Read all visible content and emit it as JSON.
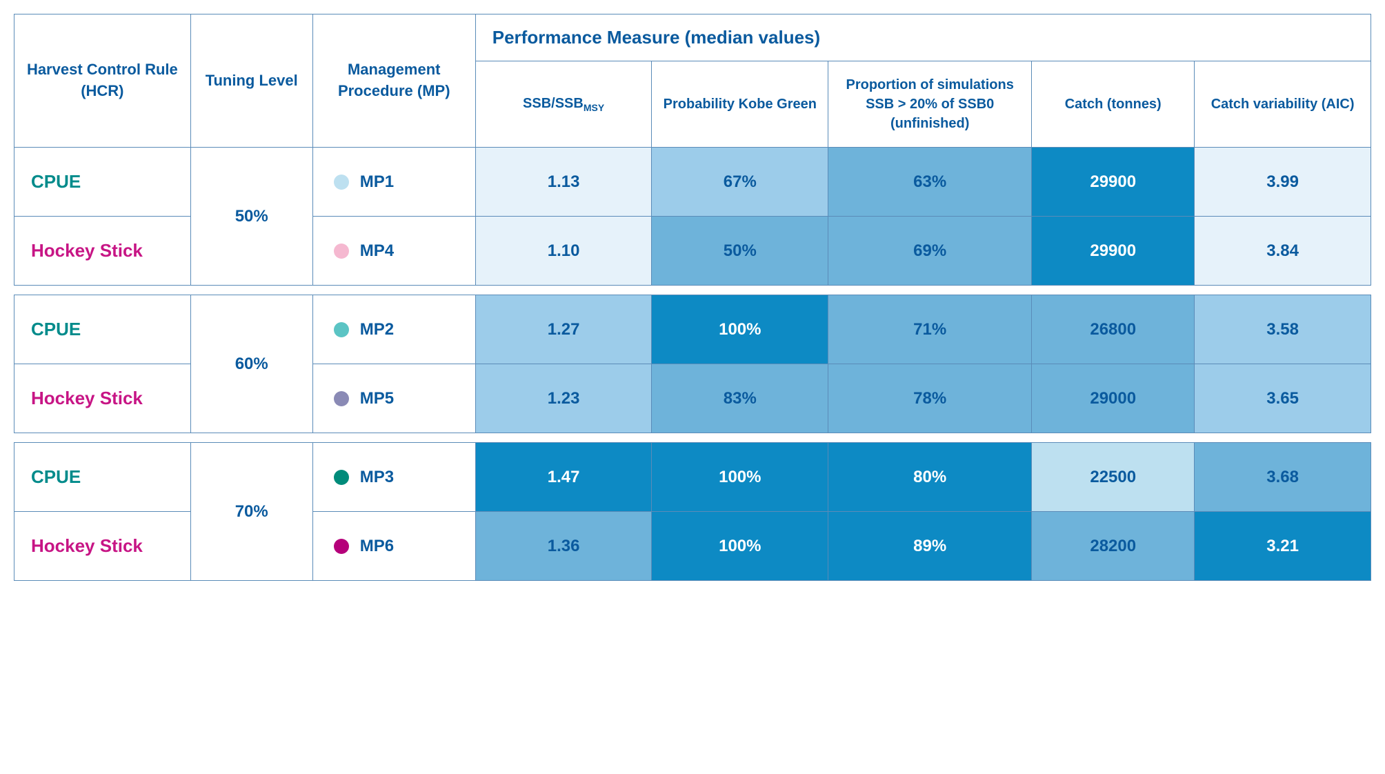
{
  "table": {
    "headers": {
      "hcr": "Harvest Control Rule (HCR)",
      "tuning": "Tuning Level",
      "mp": "Management Procedure (MP)",
      "perf_measure": "Performance Measure (median values)",
      "ssb": "SSB/SSB",
      "ssb_sub": "MSY",
      "prob_kobe": "Probability Kobe Green",
      "prop_sim": "Proportion of simulations SSB > 20% of SSB0 (unfinished)",
      "catch": "Catch (tonnes)",
      "catch_var": "Catch variability (AIC)"
    },
    "hcr_labels": {
      "cpue": "CPUE",
      "hockey": "Hockey Stick"
    },
    "groups": [
      {
        "tuning": "50%",
        "rows": [
          {
            "hcr": "cpue",
            "mp": "MP1",
            "dot_color": "#bde0f0",
            "cells": [
              {
                "v": "1.13",
                "bg": "#e6f2fa",
                "txt": "blue"
              },
              {
                "v": "67%",
                "bg": "#9cccea",
                "txt": "blue"
              },
              {
                "v": "63%",
                "bg": "#6eb3da",
                "txt": "blue"
              },
              {
                "v": "29900",
                "bg": "#0d8ac4",
                "txt": "white"
              },
              {
                "v": "3.99",
                "bg": "#e6f2fa",
                "txt": "blue"
              }
            ]
          },
          {
            "hcr": "hockey",
            "mp": "MP4",
            "dot_color": "#f5b8d0",
            "cells": [
              {
                "v": "1.10",
                "bg": "#e6f2fa",
                "txt": "blue"
              },
              {
                "v": "50%",
                "bg": "#6eb3da",
                "txt": "blue"
              },
              {
                "v": "69%",
                "bg": "#6eb3da",
                "txt": "blue"
              },
              {
                "v": "29900",
                "bg": "#0d8ac4",
                "txt": "white"
              },
              {
                "v": "3.84",
                "bg": "#e6f2fa",
                "txt": "blue"
              }
            ]
          }
        ]
      },
      {
        "tuning": "60%",
        "rows": [
          {
            "hcr": "cpue",
            "mp": "MP2",
            "dot_color": "#5bc4c4",
            "cells": [
              {
                "v": "1.27",
                "bg": "#9cccea",
                "txt": "blue"
              },
              {
                "v": "100%",
                "bg": "#0d8ac4",
                "txt": "white"
              },
              {
                "v": "71%",
                "bg": "#6eb3da",
                "txt": "blue"
              },
              {
                "v": "26800",
                "bg": "#6eb3da",
                "txt": "blue"
              },
              {
                "v": "3.58",
                "bg": "#9cccea",
                "txt": "blue"
              }
            ]
          },
          {
            "hcr": "hockey",
            "mp": "MP5",
            "dot_color": "#8a8ab5",
            "cells": [
              {
                "v": "1.23",
                "bg": "#9cccea",
                "txt": "blue"
              },
              {
                "v": "83%",
                "bg": "#6eb3da",
                "txt": "blue"
              },
              {
                "v": "78%",
                "bg": "#6eb3da",
                "txt": "blue"
              },
              {
                "v": "29000",
                "bg": "#6eb3da",
                "txt": "blue"
              },
              {
                "v": "3.65",
                "bg": "#9cccea",
                "txt": "blue"
              }
            ]
          }
        ]
      },
      {
        "tuning": "70%",
        "rows": [
          {
            "hcr": "cpue",
            "mp": "MP3",
            "dot_color": "#008b7a",
            "cells": [
              {
                "v": "1.47",
                "bg": "#0d8ac4",
                "txt": "white"
              },
              {
                "v": "100%",
                "bg": "#0d8ac4",
                "txt": "white"
              },
              {
                "v": "80%",
                "bg": "#0d8ac4",
                "txt": "white"
              },
              {
                "v": "22500",
                "bg": "#bde0f0",
                "txt": "blue"
              },
              {
                "v": "3.68",
                "bg": "#6eb3da",
                "txt": "blue"
              }
            ]
          },
          {
            "hcr": "hockey",
            "mp": "MP6",
            "dot_color": "#b5007a",
            "cells": [
              {
                "v": "1.36",
                "bg": "#6eb3da",
                "txt": "blue"
              },
              {
                "v": "100%",
                "bg": "#0d8ac4",
                "txt": "white"
              },
              {
                "v": "89%",
                "bg": "#0d8ac4",
                "txt": "white"
              },
              {
                "v": "28200",
                "bg": "#6eb3da",
                "txt": "blue"
              },
              {
                "v": "3.21",
                "bg": "#0d8ac4",
                "txt": "white"
              }
            ]
          }
        ]
      }
    ],
    "col_widths": [
      "13%",
      "9%",
      "12%",
      "13%",
      "13%",
      "15%",
      "12%",
      "13%"
    ]
  }
}
